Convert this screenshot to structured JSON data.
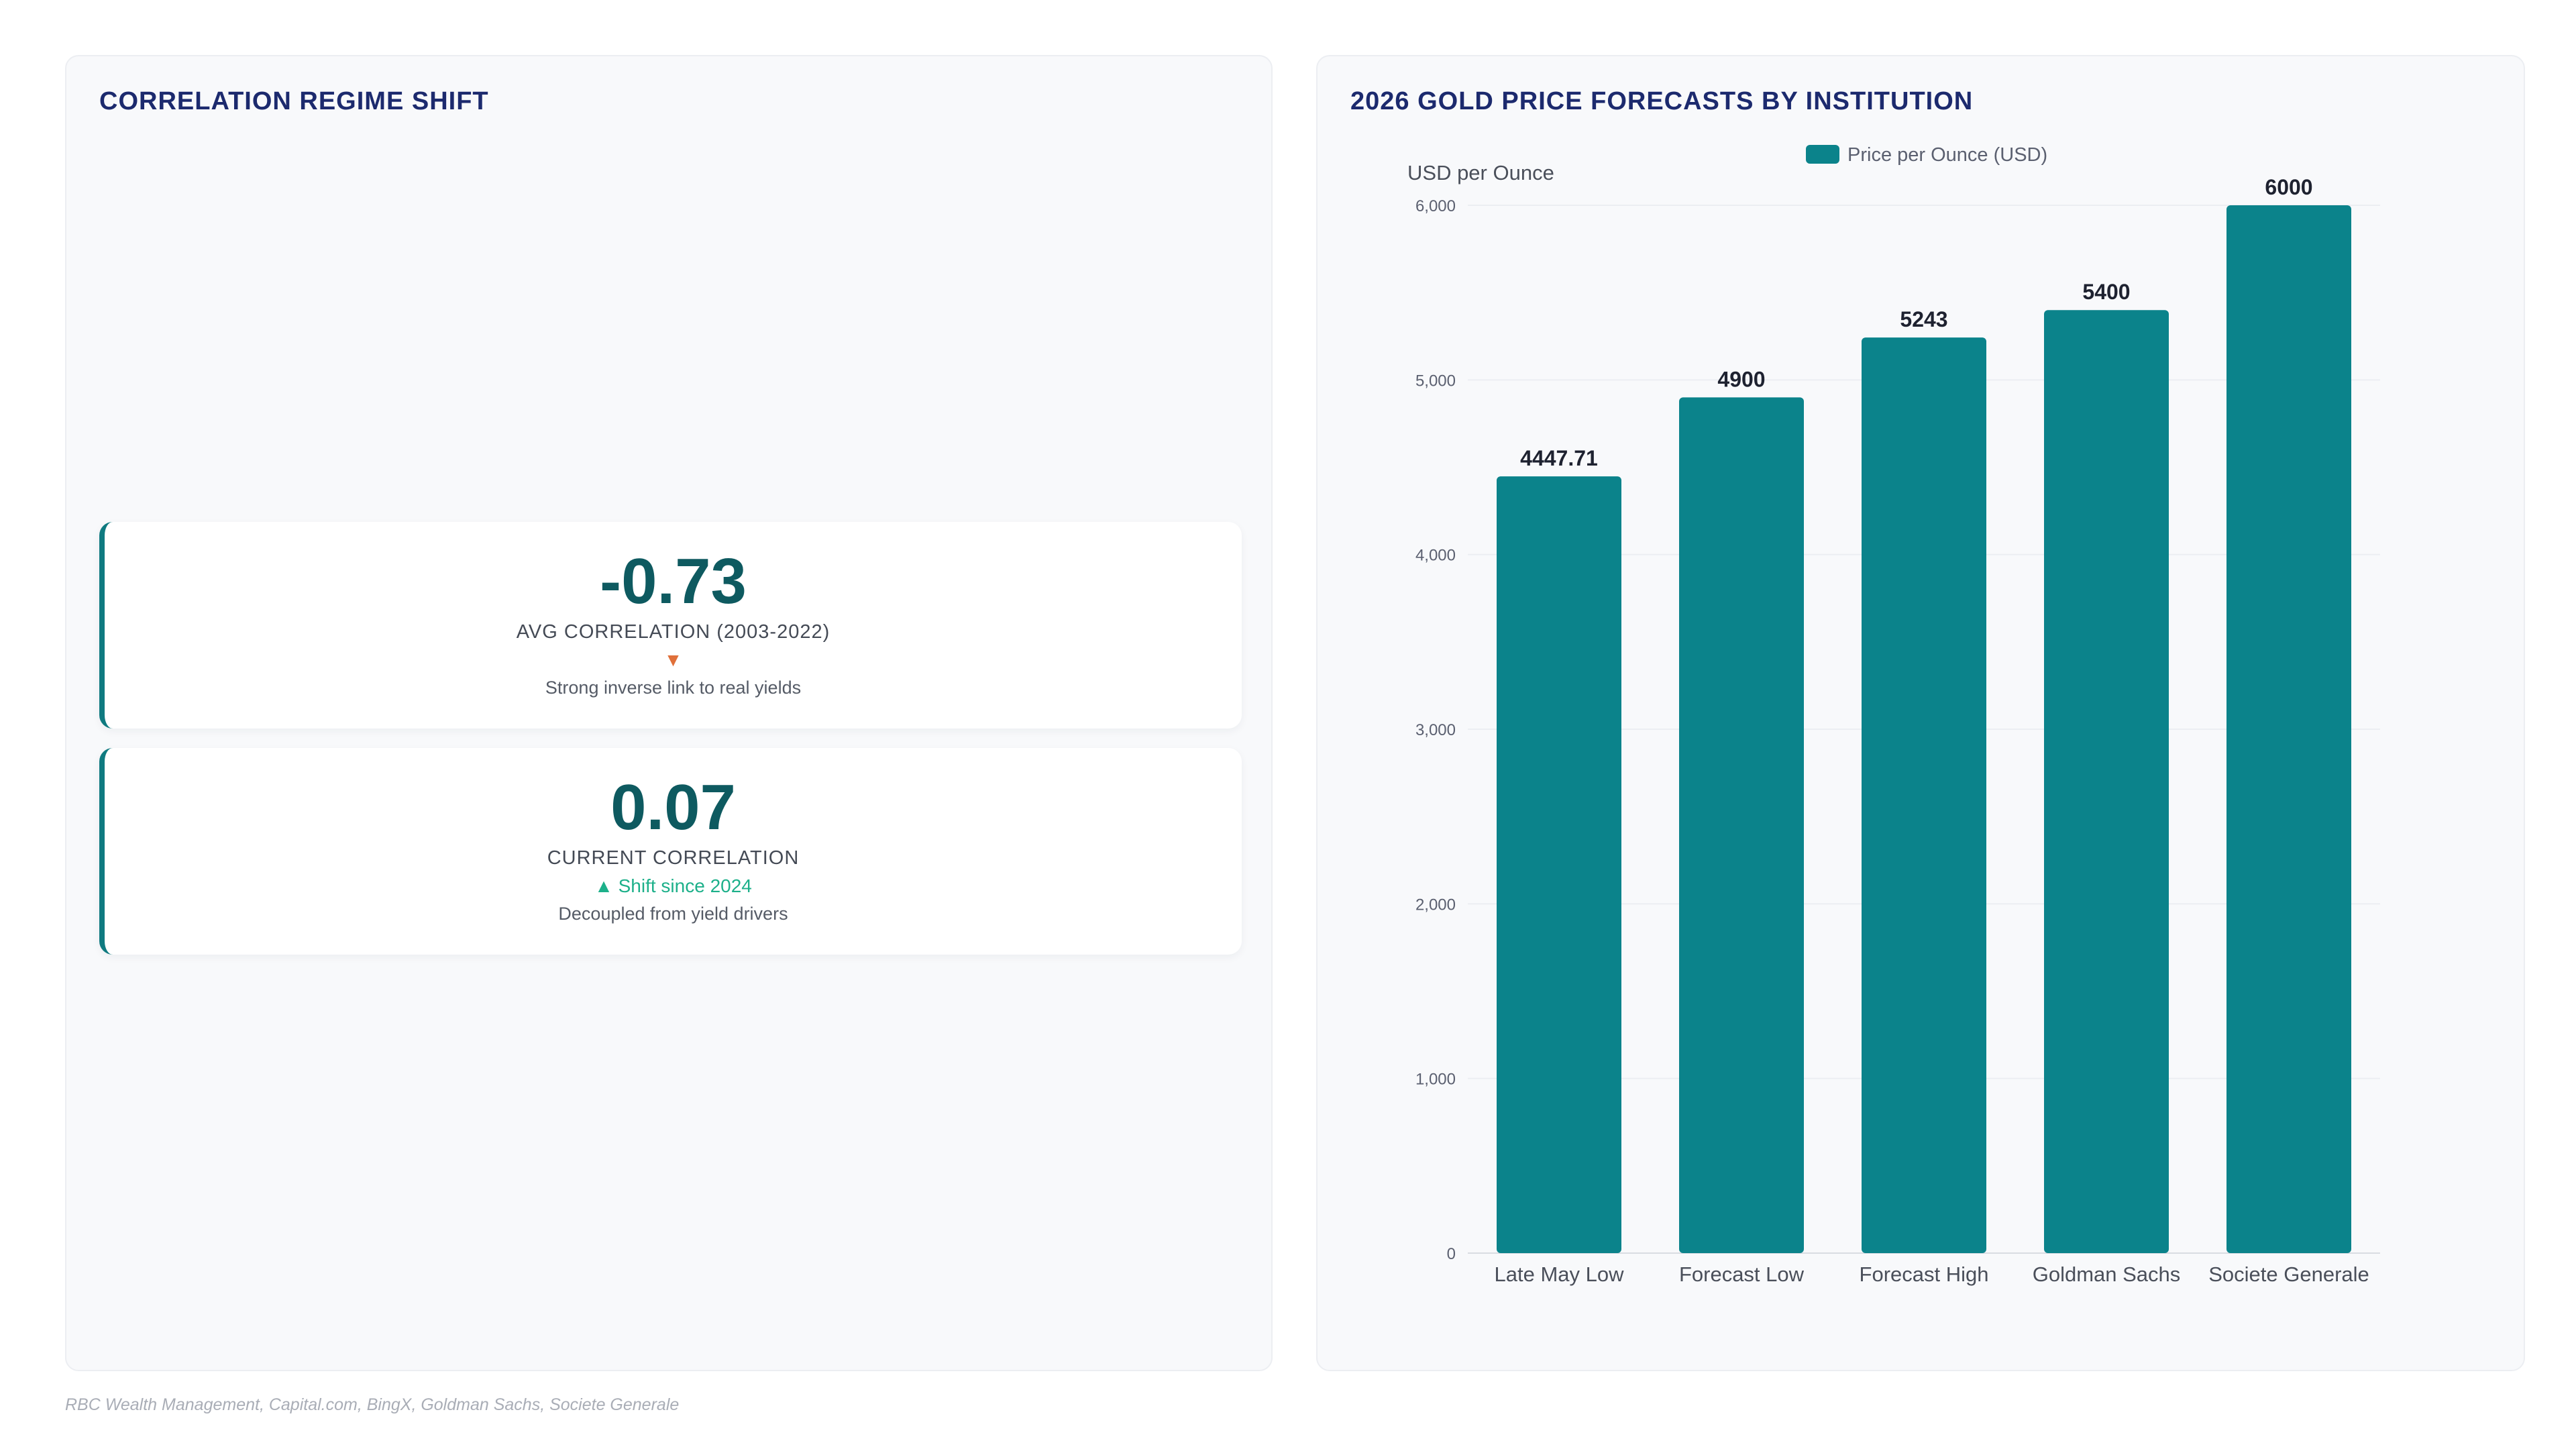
{
  "left_panel": {
    "title": "CORRELATION REGIME SHIFT",
    "kpis": [
      {
        "value": "-0.73",
        "label": "AVG CORRELATION (2003-2022)",
        "trend": "▼",
        "trend_color": "#e0703a",
        "note": "Strong inverse link to real yields"
      },
      {
        "value": "0.07",
        "label": "CURRENT CORRELATION",
        "trend": "▲ Shift since 2024",
        "trend_color": "#1db08a",
        "note": "Decoupled from yield drivers"
      }
    ]
  },
  "right_panel": {
    "title": "2026 GOLD PRICE FORECASTS BY INSTITUTION"
  },
  "chart_data": {
    "type": "bar",
    "title": "2026 GOLD PRICE FORECASTS BY INSTITUTION",
    "categories": [
      "Late May Low",
      "Forecast Low",
      "Forecast High",
      "Goldman Sachs",
      "Societe Generale"
    ],
    "series": [
      {
        "name": "Price per Ounce (USD)",
        "values": [
          4447.71,
          4900,
          5243,
          5400,
          6000
        ]
      }
    ],
    "data_labels": [
      "4447.71",
      "4900",
      "5243",
      "5400",
      "6000"
    ],
    "ylabel": "USD per Ounce",
    "xlabel": "",
    "ylim": [
      0,
      6000
    ],
    "yticks": [
      0,
      1000,
      2000,
      3000,
      4000,
      5000,
      6000
    ],
    "ytick_labels": [
      "0",
      "1,000",
      "2,000",
      "3,000",
      "4,000",
      "5,000",
      "6,000"
    ],
    "grid": true,
    "legend": "top-center",
    "bar_color": "#0b838b"
  },
  "source": "RBC Wealth Management, Capital.com, BingX, Goldman Sachs, Societe Generale"
}
